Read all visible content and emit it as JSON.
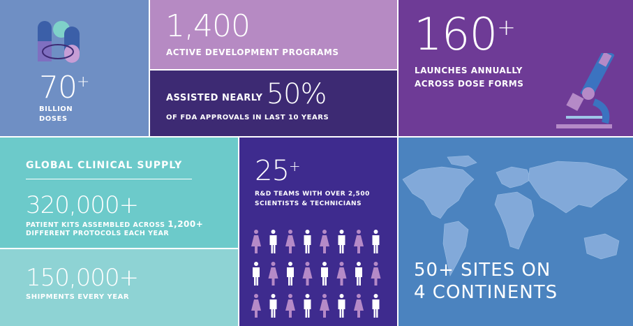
{
  "colors": {
    "doses_bg": "#6f8fc4",
    "programs_bg": "#b68ac3",
    "fda_bg": "#3d2a73",
    "launches_bg": "#6e3b96",
    "clinical_bg": "#6ccaca",
    "shipments_bg": "#8ed3d4",
    "teams_bg": "#3e2b8e",
    "sites_bg": "#4b83bf",
    "map_land": "#82a9d9"
  },
  "doses": {
    "value": "70",
    "plus": "+",
    "line1": "BILLION",
    "line2": "DOSES",
    "icon": "capsules-icon"
  },
  "programs": {
    "value": "1,400",
    "caption": "ACTIVE DEVELOPMENT PROGRAMS"
  },
  "fda": {
    "lead": "ASSISTED NEARLY",
    "value": "50%",
    "caption": "OF FDA APPROVALS IN LAST 10 YEARS"
  },
  "launches": {
    "value": "160",
    "plus": "+",
    "line1": "LAUNCHES ANNUALLY",
    "line2": "ACROSS DOSE FORMS",
    "icon": "microscope-icon"
  },
  "clinical": {
    "heading": "GLOBAL CLINICAL SUPPLY",
    "kits_value": "320,000+",
    "kits_line1a": "PATIENT KITS ASSEMBLED ACROSS",
    "kits_line1b": "1,200+",
    "kits_line2": "DIFFERENT PROTOCOLS EACH YEAR"
  },
  "shipments": {
    "value": "150,000+",
    "caption": "SHIPMENTS EVERY YEAR"
  },
  "teams": {
    "value": "25",
    "plus": "+",
    "line1": "R&D TEAMS WITH OVER 2,500",
    "line2": "SCIENTISTS & TECHNICIANS",
    "icon": "people-icon"
  },
  "sites": {
    "line1": "50+ SITES ON",
    "line2": "4 CONTINENTS",
    "icon": "world-map-icon"
  }
}
